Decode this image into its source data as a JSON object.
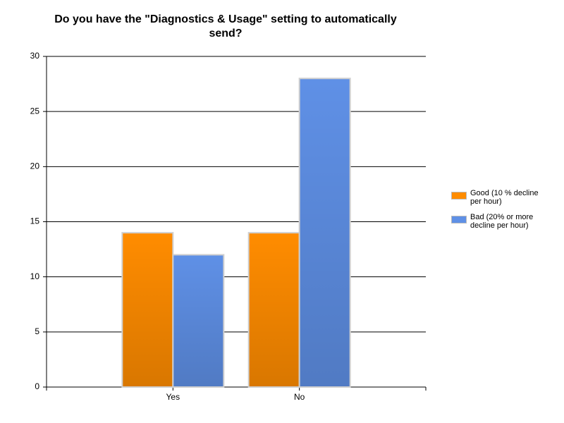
{
  "chart_data": {
    "type": "bar",
    "title": "Do you have the \"Diagnostics & Usage\" setting to automatically send?",
    "categories": [
      "Yes",
      "No"
    ],
    "series": [
      {
        "name": "Good (10 % decline per hour)",
        "color": "#ff8c00",
        "values": [
          14,
          14
        ]
      },
      {
        "name": "Bad (20% or more decline per hour)",
        "color": "#5f90e6",
        "values": [
          12,
          28
        ]
      }
    ],
    "ylim": [
      0,
      30
    ],
    "yticks": [
      0,
      5,
      10,
      15,
      20,
      25,
      30
    ],
    "grid": true,
    "legend": "right"
  }
}
